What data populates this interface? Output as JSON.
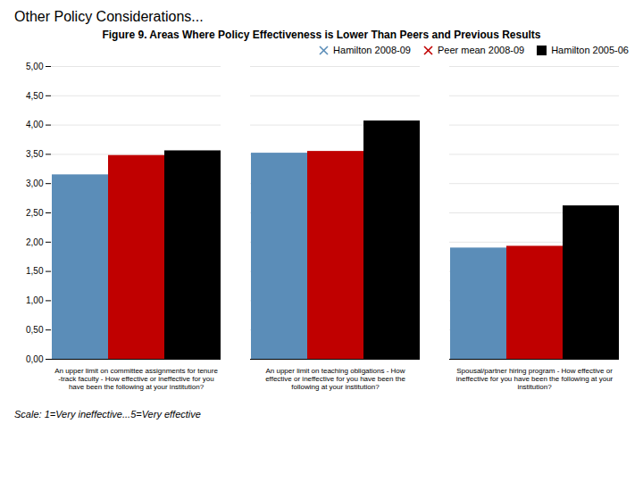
{
  "chart_data": {
    "type": "bar",
    "title": "Other Policy Considerations...",
    "subtitle": "Figure 9. Areas Where Policy Effectiveness is Lower Than Peers and Previous Results",
    "categories": [
      "An upper limit on committee assignments for tenure\n-track faculty - How effective or ineffective for you\nhave been the following at your institution?",
      "An upper limit on teaching obligations - How\neffective or ineffective for you have been the\nfollowing at your institution?",
      "Spousal/partner hiring program - How effective or\nineffective for you have been the following at your\ninstitution?"
    ],
    "series": [
      {
        "name": "Hamilton 2008-09",
        "values": [
          3.15,
          3.52,
          1.9
        ],
        "color": "#5B8DB8",
        "marker": "x"
      },
      {
        "name": "Peer mean 2008-09",
        "values": [
          3.48,
          3.55,
          1.93
        ],
        "color": "#C00000",
        "marker": "x"
      },
      {
        "name": "Hamilton 2005-06",
        "values": [
          3.56,
          4.07,
          2.62
        ],
        "color": "#000000",
        "marker": "s"
      }
    ],
    "ylim": [
      0,
      5.0
    ],
    "yticks": [
      {
        "value": 0.0,
        "label": "0,00"
      },
      {
        "value": 0.5,
        "label": "0,50"
      },
      {
        "value": 1.0,
        "label": "1,00"
      },
      {
        "value": 1.5,
        "label": "1,50"
      },
      {
        "value": 2.0,
        "label": "2,00"
      },
      {
        "value": 2.5,
        "label": "2,50"
      },
      {
        "value": 3.0,
        "label": "3,00"
      },
      {
        "value": 3.5,
        "label": "3,50"
      },
      {
        "value": 4.0,
        "label": "4,00"
      },
      {
        "value": 4.5,
        "label": "4,50"
      },
      {
        "value": 5.0,
        "label": "5,00"
      }
    ],
    "grid": true,
    "legend": "upper right",
    "annotations": [
      "Scale: 1=Very ineffective...5=Very effective"
    ]
  }
}
